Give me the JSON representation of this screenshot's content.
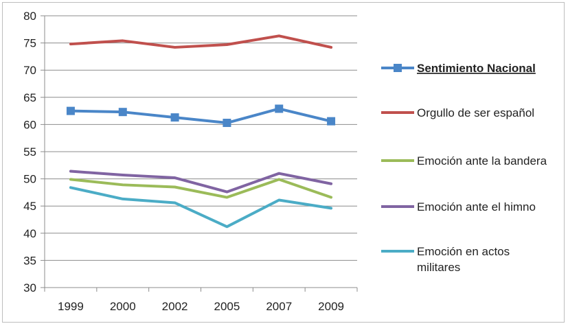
{
  "chart_data": {
    "type": "line",
    "title": "",
    "xlabel": "",
    "ylabel": "",
    "categories": [
      "1999",
      "2000",
      "2002",
      "2005",
      "2007",
      "2009"
    ],
    "ylim": [
      30,
      80
    ],
    "yticks": [
      "30",
      "35",
      "40",
      "45",
      "50",
      "55",
      "60",
      "65",
      "70",
      "75",
      "80"
    ],
    "grid": "horizontal",
    "legend_position": "right",
    "series": [
      {
        "name_lines": [
          "Sentimiento Nacional"
        ],
        "name": "Sentimiento Nacional",
        "values": [
          62.5,
          62.3,
          61.3,
          60.3,
          62.9,
          60.6
        ],
        "color": "#4a86c8",
        "marker": "square",
        "legend_bold_underline": true
      },
      {
        "name_lines": [
          "Orgullo de ser español"
        ],
        "name": "Orgullo de ser español",
        "values": [
          74.8,
          75.4,
          74.2,
          74.7,
          76.3,
          74.2
        ],
        "color": "#c0504d",
        "marker": "none",
        "legend_bold_underline": false
      },
      {
        "name_lines": [
          "Emoción ante la bandera"
        ],
        "name": "Emoción ante la bandera",
        "values": [
          49.9,
          48.9,
          48.5,
          46.6,
          49.9,
          46.6
        ],
        "color": "#9bbb59",
        "marker": "none",
        "legend_bold_underline": false
      },
      {
        "name_lines": [
          "Emoción ante el himno"
        ],
        "name": "Emoción ante el himno",
        "values": [
          51.4,
          50.7,
          50.2,
          47.6,
          51.0,
          49.1
        ],
        "color": "#8064a2",
        "marker": "none",
        "legend_bold_underline": false
      },
      {
        "name_lines": [
          "Emoción en actos",
          "militares"
        ],
        "name": "Emoción en actos militares",
        "values": [
          48.4,
          46.3,
          45.6,
          41.2,
          46.1,
          44.6
        ],
        "color": "#4bacc6",
        "marker": "none",
        "legend_bold_underline": false
      }
    ]
  }
}
